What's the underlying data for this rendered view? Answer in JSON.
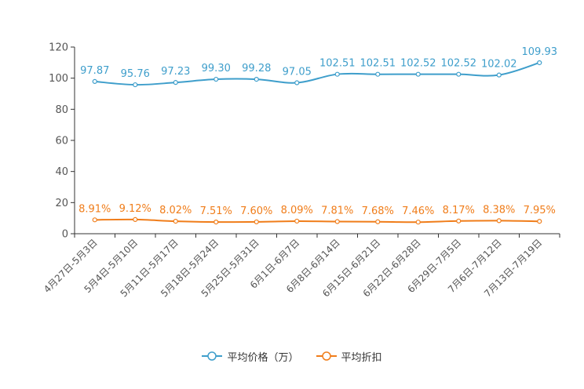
{
  "chart_data": {
    "type": "line",
    "categories": [
      "4月27日-5月3日",
      "5月4日-5月10日",
      "5月11日-5月17日",
      "5月18日-5月24日",
      "5月25日-5月31日",
      "6月1日-6月7日",
      "6月8日-6月14日",
      "6月15日-6月21日",
      "6月22日-6月28日",
      "6月29日-7月5日",
      "7月6日-7月12日",
      "7月13日-7月19日"
    ],
    "series": [
      {
        "name": "平均价格（万）",
        "color": "#3e9ecb",
        "values": [
          97.87,
          95.76,
          97.23,
          99.3,
          99.28,
          97.05,
          102.51,
          102.51,
          102.52,
          102.52,
          102.02,
          109.93
        ],
        "labels": [
          "97.87",
          "95.76",
          "97.23",
          "99.30",
          "99.28",
          "97.05",
          "102.51",
          "102.51",
          "102.52",
          "102.52",
          "102.02",
          "109.93"
        ]
      },
      {
        "name": "平均折扣",
        "color": "#f07d1a",
        "values": [
          8.91,
          9.12,
          8.02,
          7.51,
          7.6,
          8.09,
          7.81,
          7.68,
          7.46,
          8.17,
          8.38,
          7.95
        ],
        "labels": [
          "8.91%",
          "9.12%",
          "8.02%",
          "7.51%",
          "7.60%",
          "8.09%",
          "7.81%",
          "7.68%",
          "7.46%",
          "8.17%",
          "8.38%",
          "7.95%"
        ]
      }
    ],
    "ylim": [
      0,
      120
    ],
    "yticks": [
      "0",
      "20",
      "40",
      "60",
      "80",
      "100",
      "120"
    ],
    "ytick_values": [
      0,
      20,
      40,
      60,
      80,
      100,
      120
    ],
    "legend_position": "bottom-center",
    "grid": false,
    "title": "",
    "xlabel": "",
    "ylabel": ""
  }
}
